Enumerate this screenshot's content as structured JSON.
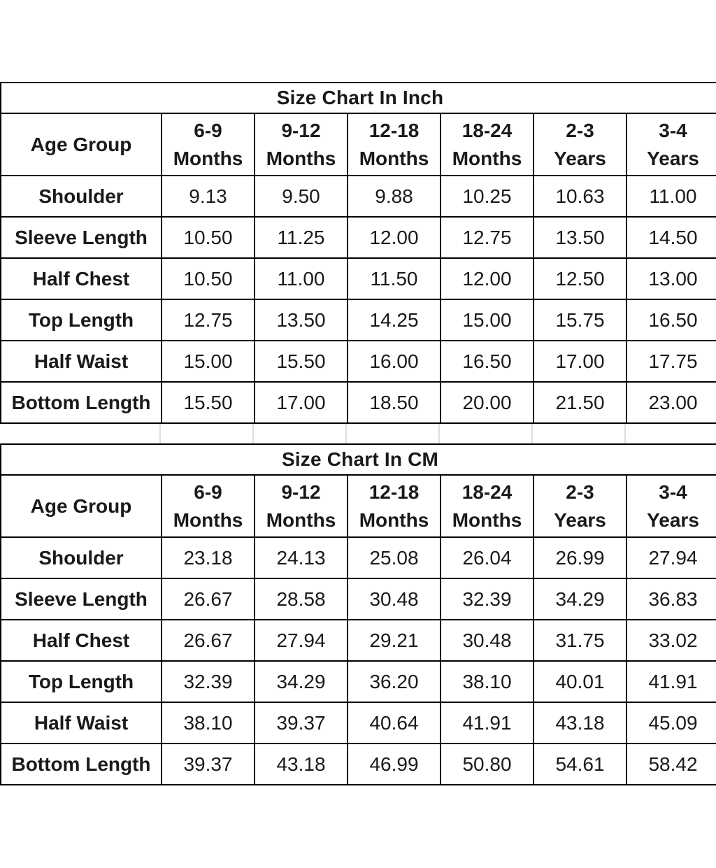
{
  "sheet": {
    "background": "#ffffff",
    "text_color": "#1a1a1a",
    "border_color": "#000000",
    "gridline_color": "#dedede"
  },
  "tables": [
    {
      "title": "Size Chart In Inch",
      "corner_header": "Age Group",
      "column_headers": [
        [
          "6-9",
          "Months"
        ],
        [
          "9-12",
          "Months"
        ],
        [
          "12-18",
          "Months"
        ],
        [
          "18-24",
          "Months"
        ],
        [
          "2-3",
          "Years"
        ],
        [
          "3-4",
          "Years"
        ]
      ],
      "rows": [
        {
          "label": "Shoulder",
          "values": [
            "9.13",
            "9.50",
            "9.88",
            "10.25",
            "10.63",
            "11.00"
          ]
        },
        {
          "label": "Sleeve Length",
          "values": [
            "10.50",
            "11.25",
            "12.00",
            "12.75",
            "13.50",
            "14.50"
          ]
        },
        {
          "label": "Half Chest",
          "values": [
            "10.50",
            "11.00",
            "11.50",
            "12.00",
            "12.50",
            "13.00"
          ]
        },
        {
          "label": "Top Length",
          "values": [
            "12.75",
            "13.50",
            "14.25",
            "15.00",
            "15.75",
            "16.50"
          ]
        },
        {
          "label": "Half Waist",
          "values": [
            "15.00",
            "15.50",
            "16.00",
            "16.50",
            "17.00",
            "17.75"
          ]
        },
        {
          "label": "Bottom Length",
          "values": [
            "15.50",
            "17.00",
            "18.50",
            "20.00",
            "21.50",
            "23.00"
          ]
        }
      ]
    },
    {
      "title": "Size Chart In CM",
      "corner_header": "Age Group",
      "column_headers": [
        [
          "6-9",
          "Months"
        ],
        [
          "9-12",
          "Months"
        ],
        [
          "12-18",
          "Months"
        ],
        [
          "18-24",
          "Months"
        ],
        [
          "2-3",
          "Years"
        ],
        [
          "3-4",
          "Years"
        ]
      ],
      "rows": [
        {
          "label": "Shoulder",
          "values": [
            "23.18",
            "24.13",
            "25.08",
            "26.04",
            "26.99",
            "27.94"
          ]
        },
        {
          "label": "Sleeve Length",
          "values": [
            "26.67",
            "28.58",
            "30.48",
            "32.39",
            "34.29",
            "36.83"
          ]
        },
        {
          "label": "Half Chest",
          "values": [
            "26.67",
            "27.94",
            "29.21",
            "30.48",
            "31.75",
            "33.02"
          ]
        },
        {
          "label": "Top Length",
          "values": [
            "32.39",
            "34.29",
            "36.20",
            "38.10",
            "40.01",
            "41.91"
          ]
        },
        {
          "label": "Half Waist",
          "values": [
            "38.10",
            "39.37",
            "40.64",
            "41.91",
            "43.18",
            "45.09"
          ]
        },
        {
          "label": "Bottom Length",
          "values": [
            "39.37",
            "43.18",
            "46.99",
            "50.80",
            "54.61",
            "58.42"
          ]
        }
      ]
    }
  ]
}
